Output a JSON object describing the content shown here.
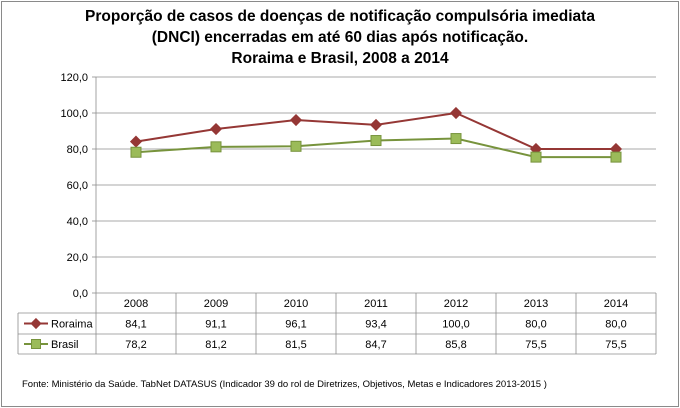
{
  "chart_data": {
    "type": "line",
    "title_lines": [
      "Proporção de casos de doenças de notificação compulsória imediata",
      "(DNCI) encerradas em até 60 dias após notificação.",
      "Roraima e Brasil, 2008 a 2014"
    ],
    "categories": [
      "2008",
      "2009",
      "2010",
      "2011",
      "2012",
      "2013",
      "2014"
    ],
    "series": [
      {
        "name": "Roraima",
        "values": [
          84.1,
          91.1,
          96.1,
          93.4,
          100.0,
          80.0,
          80.0
        ],
        "labels": [
          "84,1",
          "91,1",
          "96,1",
          "93,4",
          "100,0",
          "80,0",
          "80,0"
        ],
        "color": "#953735",
        "marker": "diamond"
      },
      {
        "name": "Brasil",
        "values": [
          78.2,
          81.2,
          81.5,
          84.7,
          85.8,
          75.5,
          75.5
        ],
        "labels": [
          "78,2",
          "81,2",
          "81,5",
          "84,7",
          "85,8",
          "75,5",
          "75,5"
        ],
        "color": "#77933c",
        "marker": "square"
      }
    ],
    "ylim": [
      0,
      120
    ],
    "yticks": [
      0,
      20,
      40,
      60,
      80,
      100,
      120
    ],
    "ytick_labels": [
      "0,0",
      "20,0",
      "40,0",
      "60,0",
      "80,0",
      "100,0",
      "120,0"
    ],
    "grid": true,
    "legend": "data-table",
    "xlabel": "",
    "ylabel": ""
  },
  "source_text": "Fonte: Ministério da Saúde. TabNet DATASUS (Indicador 39 do rol de Diretrizes, Objetivos, Metas e Indicadores 2013-2015 )"
}
